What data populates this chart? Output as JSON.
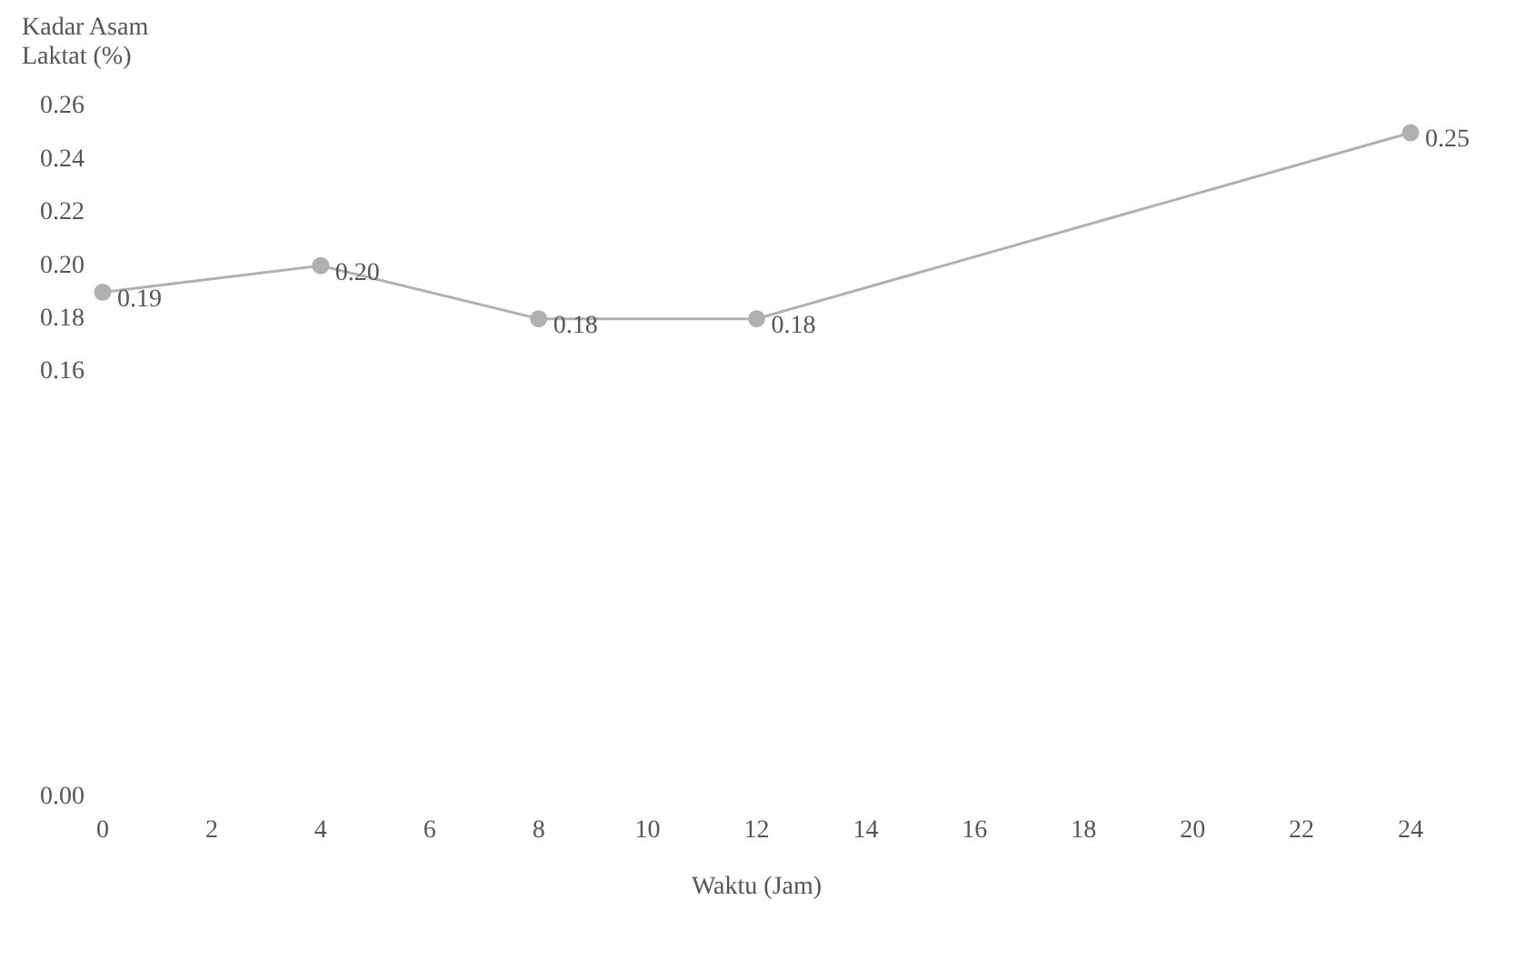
{
  "chart_data": {
    "type": "line",
    "xlabel": "Waktu (Jam)",
    "ylabel": "Kadar Asam Laktat (%)",
    "x": [
      0,
      4,
      8,
      12,
      24
    ],
    "series": [
      {
        "color": "#b0b0b0",
        "values": [
          0.19,
          0.2,
          0.18,
          0.18,
          0.25
        ],
        "value_labels": [
          "0.19",
          "0.20",
          "0.18",
          "0.18",
          "0.25"
        ]
      }
    ],
    "xlim": [
      0,
      24
    ],
    "xticks": [
      0,
      2,
      4,
      6,
      8,
      10,
      12,
      14,
      16,
      18,
      20,
      22,
      24
    ],
    "ylim": [
      0,
      0.26
    ],
    "yticks": [
      {
        "value": 0,
        "label": "0.00"
      },
      0.16,
      0.18,
      {
        "value": 0.2,
        "label": "0.20"
      },
      0.22,
      0.24,
      0.26
    ],
    "marker": "circle",
    "grid": false,
    "legend": false
  }
}
